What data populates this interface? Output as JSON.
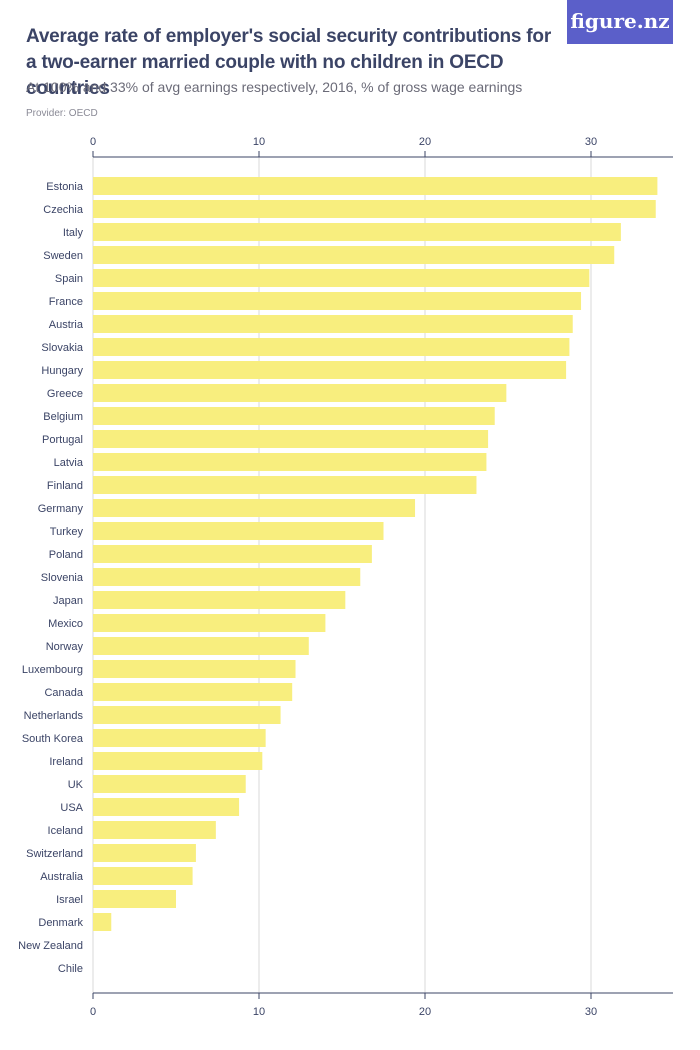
{
  "header": {
    "title": "Average rate of employer's social security contributions for a two-earner married couple with no children in OECD countries",
    "subtitle": "At 100% and 33% of avg earnings respectively, 2016, % of gross wage earnings",
    "provider": "Provider: OECD",
    "logo": "figure.nz"
  },
  "colors": {
    "bar": "#f8ee7e",
    "grid": "#d9d9d9",
    "axis": "#3b4466",
    "text": "#3b4466",
    "logo_bg": "#5b5fc9"
  },
  "chart_data": {
    "type": "bar",
    "orientation": "horizontal",
    "title": "Average rate of employer's social security contributions for a two-earner married couple with no children in OECD countries",
    "subtitle": "At 100% and 33% of avg earnings respectively, 2016, % of gross wage earnings",
    "xlabel": "",
    "ylabel": "",
    "xlim": [
      0,
      35
    ],
    "xticks": [
      0,
      10,
      20,
      30
    ],
    "grid": true,
    "axis_positions": [
      "top",
      "bottom"
    ],
    "categories": [
      "Estonia",
      "Czechia",
      "Italy",
      "Sweden",
      "Spain",
      "France",
      "Austria",
      "Slovakia",
      "Hungary",
      "Greece",
      "Belgium",
      "Portugal",
      "Latvia",
      "Finland",
      "Germany",
      "Turkey",
      "Poland",
      "Slovenia",
      "Japan",
      "Mexico",
      "Norway",
      "Luxembourg",
      "Canada",
      "Netherlands",
      "South Korea",
      "Ireland",
      "UK",
      "USA",
      "Iceland",
      "Switzerland",
      "Australia",
      "Israel",
      "Denmark",
      "New Zealand",
      "Chile"
    ],
    "values": [
      34.0,
      33.9,
      31.8,
      31.4,
      29.9,
      29.4,
      28.9,
      28.7,
      28.5,
      24.9,
      24.2,
      23.8,
      23.7,
      23.1,
      19.4,
      17.5,
      16.8,
      16.1,
      15.2,
      14.0,
      13.0,
      12.2,
      12.0,
      11.3,
      10.4,
      10.2,
      9.2,
      8.8,
      7.4,
      6.2,
      6.0,
      5.0,
      1.1,
      0.0,
      0.0
    ]
  }
}
